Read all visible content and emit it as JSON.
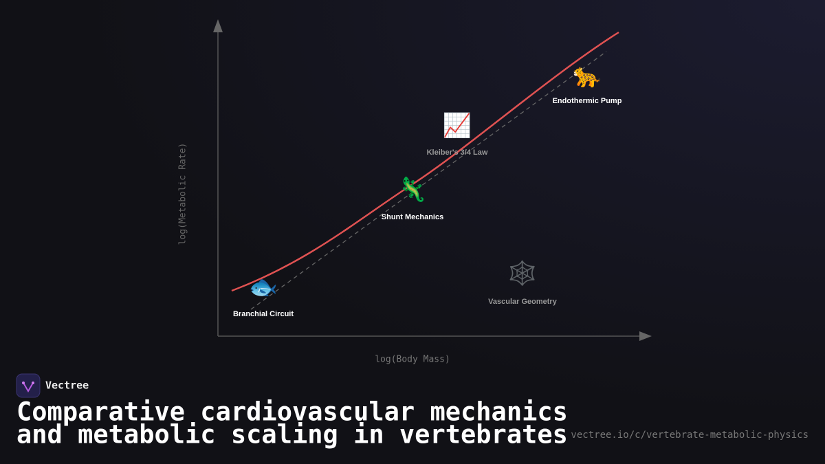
{
  "diagram": {
    "y_axis_label": "log(Metabolic Rate)",
    "x_axis_label": "log(Body Mass)",
    "nodes": [
      {
        "icon": "🐟",
        "label": "Branchial Circuit"
      },
      {
        "icon": "🦎",
        "label": "Shunt Mechanics"
      },
      {
        "icon": "📈",
        "label": "Kleiber's 3/4 Law"
      },
      {
        "icon": "🐆",
        "label": "Endothermic Pump"
      },
      {
        "icon": "🕸️",
        "label": "Vascular Geometry"
      }
    ]
  },
  "footer": {
    "brand": "Vectree",
    "title_lines": [
      "Comparative cardiovascular mechanics",
      "and metabolic scaling in vertebrates"
    ],
    "url": "vectree.io/c/vertebrate-metabolic-physics"
  }
}
